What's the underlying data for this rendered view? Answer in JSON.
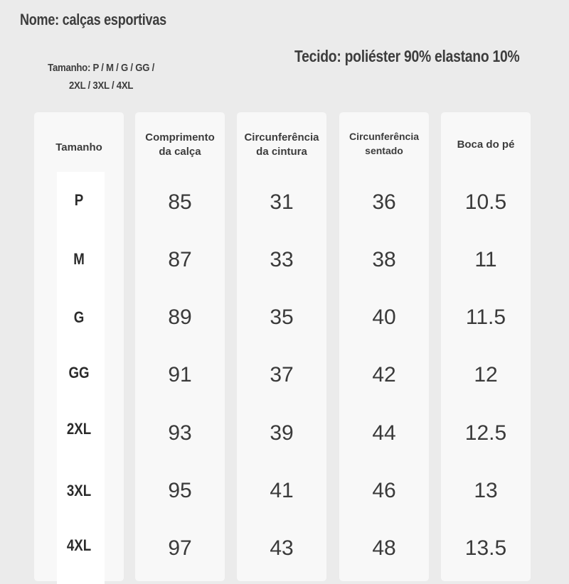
{
  "header": {
    "product_name": "Nome: calças esportivas",
    "sizes_line": "Tamanho: P / M / G / GG / 2XL / 3XL / 4XL",
    "fabric": "Tecido: poliéster 90% elastano 10%"
  },
  "table": {
    "columns": [
      {
        "label": "Tamanho"
      },
      {
        "label": "Comprimento\nda calça"
      },
      {
        "label": "Circunferência\nda cintura"
      },
      {
        "label": "Circunferência\nsentado"
      },
      {
        "label": "Boca do pé"
      }
    ],
    "rows": [
      {
        "size": "P",
        "length": "85",
        "waist": "31",
        "seated": "36",
        "hem": "10.5"
      },
      {
        "size": "M",
        "length": "87",
        "waist": "33",
        "seated": "38",
        "hem": "11"
      },
      {
        "size": "G",
        "length": "89",
        "waist": "35",
        "seated": "40",
        "hem": "11.5"
      },
      {
        "size": "GG",
        "length": "91",
        "waist": "37",
        "seated": "42",
        "hem": "12"
      },
      {
        "size": "2XL",
        "length": "93",
        "waist": "39",
        "seated": "44",
        "hem": "12.5"
      },
      {
        "size": "3XL",
        "length": "95",
        "waist": "41",
        "seated": "46",
        "hem": "13"
      },
      {
        "size": "4XL",
        "length": "97",
        "waist": "43",
        "seated": "48",
        "hem": "13.5"
      }
    ]
  }
}
